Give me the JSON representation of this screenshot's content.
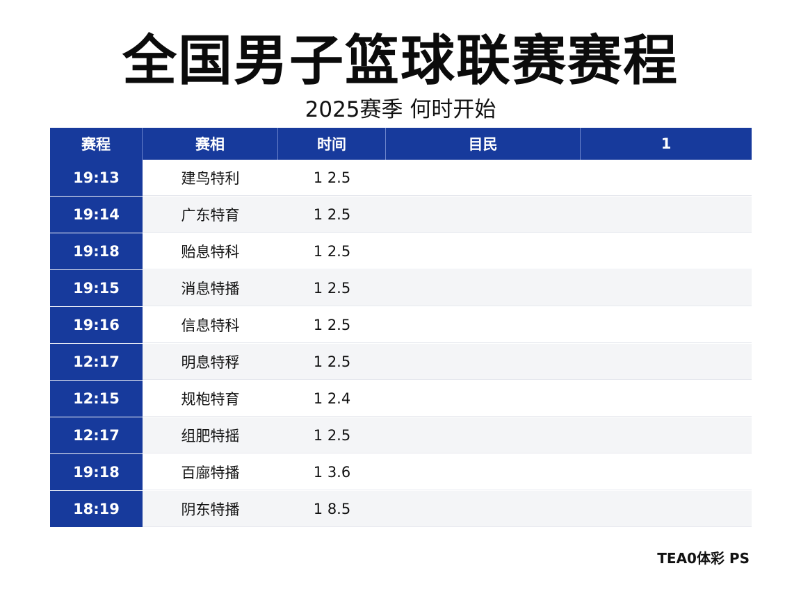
{
  "title": "全国男子篮球联赛赛程",
  "subtitle": "2025赛季  何时开始",
  "table": {
    "headers": [
      "赛程",
      "赛相",
      "时间",
      "目民",
      "1"
    ],
    "rows": [
      {
        "time": "19:13",
        "team": "建鸟特利",
        "value": "1 2.5"
      },
      {
        "time": "19:14",
        "team": "广东特育",
        "value": "1 2.5"
      },
      {
        "time": "19:18",
        "team": "贻息特科",
        "value": "1 2.5"
      },
      {
        "time": "19:15",
        "team": "消息特播",
        "value": "1 2.5"
      },
      {
        "time": "19:16",
        "team": "信息特科",
        "value": "1 2.5"
      },
      {
        "time": "12:17",
        "team": "明息特稃",
        "value": "1 2.5"
      },
      {
        "time": "12:15",
        "team": "规枹特育",
        "value": "1 2.4"
      },
      {
        "time": "12:17",
        "team": "组肥特摇",
        "value": "1 2.5"
      },
      {
        "time": "19:18",
        "team": "百廍特播",
        "value": "1 3.6"
      },
      {
        "time": "18:19",
        "team": "阴东特播",
        "value": "1 8.5"
      }
    ]
  },
  "footer": "TEA0体彩 PS",
  "colors": {
    "header_blue": "#173a9c",
    "alt_row": "#f4f5f7"
  }
}
